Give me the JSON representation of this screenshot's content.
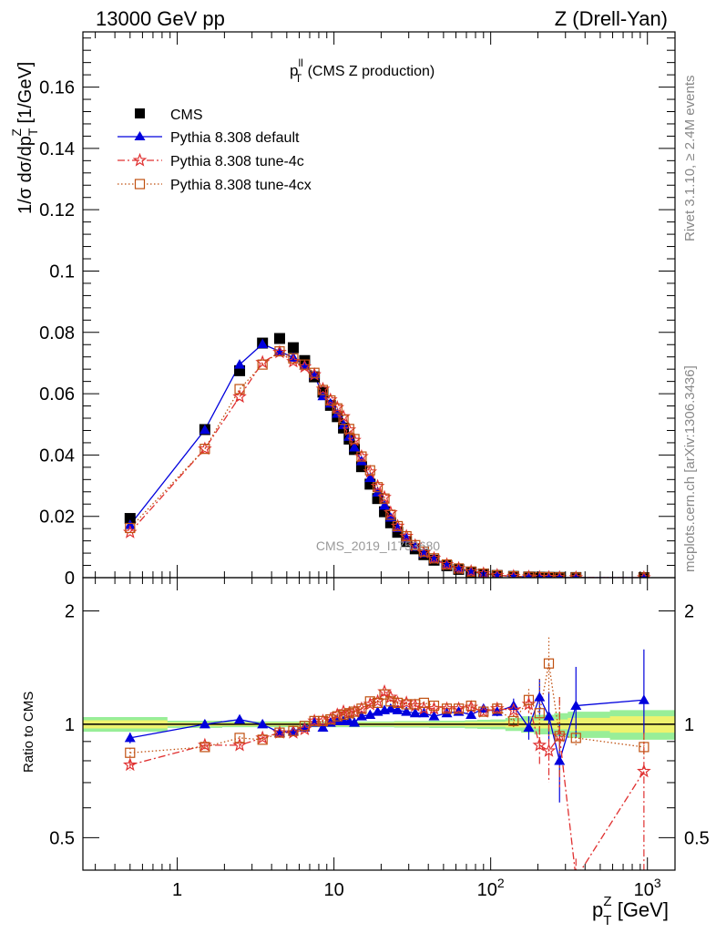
{
  "header": {
    "left": "13000 GeV pp",
    "right": "Z (Drell-Yan)"
  },
  "side_text": {
    "rivet": "Rivet 3.1.10, ≥ 2.4M events",
    "mcplots": "mcplots.cern.ch [arXiv:1306.3436]"
  },
  "chart_data": [
    {
      "type": "scatter",
      "title": "p_T^ll (CMS Z production)",
      "title_main": "p",
      "title_sup": "ll",
      "title_sub": "T",
      "title_rest": " (CMS Z production)",
      "ylabel": "1/σ dσ/dp_T^Z [1/GeV]",
      "ylabel_parts": {
        "a": "1/σ dσ/dp",
        "sub": "T",
        "sup": "Z",
        "b": " [1/GeV]"
      },
      "watermark": "CMS_2019_I1753680",
      "xscale": "log",
      "xlim": [
        0.25,
        1500
      ],
      "ylim": [
        0,
        0.178
      ],
      "yticks": [
        0,
        0.02,
        0.04,
        0.06,
        0.08,
        0.1,
        0.12,
        0.14,
        0.16
      ],
      "ytick_labels": [
        "0",
        "0.02",
        "0.04",
        "0.06",
        "0.08",
        "0.1",
        "0.12",
        "0.14",
        "0.16"
      ],
      "legend_position": "top-left",
      "legend": [
        "CMS",
        "Pythia 8.308 default",
        "Pythia 8.308 tune-4c",
        "Pythia 8.308 tune-4cx"
      ],
      "x": [
        0.5,
        1.5,
        2.5,
        3.5,
        4.5,
        5.5,
        6.5,
        7.5,
        8.5,
        9.5,
        10.5,
        11.5,
        12.5,
        13.5,
        15,
        17,
        19,
        21,
        23,
        25.5,
        29,
        33,
        37.5,
        43.5,
        52.5,
        62.5,
        75,
        90,
        110,
        140,
        175,
        205,
        235,
        275,
        350,
        950
      ],
      "series": [
        {
          "name": "CMS",
          "color": "#000000",
          "marker": "square-filled",
          "values": [
            0.0193,
            0.0483,
            0.0675,
            0.0765,
            0.078,
            0.075,
            0.0708,
            0.0655,
            0.0605,
            0.0562,
            0.0525,
            0.0488,
            0.0452,
            0.0418,
            0.0362,
            0.0305,
            0.0258,
            0.0215,
            0.0179,
            0.0148,
            0.0118,
            0.0094,
            0.0075,
            0.0057,
            0.0039,
            0.0027,
            0.0018,
            0.0012,
            0.0007,
            0.0004,
            0.00022,
            0.00014,
            0.0001,
            7e-05,
            4e-05,
            3e-06
          ]
        },
        {
          "name": "Pythia 8.308 default",
          "color": "#0000dd",
          "marker": "triangle-filled",
          "line": "solid",
          "values": [
            0.0172,
            0.0482,
            0.0695,
            0.0762,
            0.0738,
            0.0718,
            0.0692,
            0.0662,
            0.0592,
            0.0568,
            0.0535,
            0.0498,
            0.046,
            0.0425,
            0.038,
            0.0325,
            0.0278,
            0.0235,
            0.0196,
            0.0162,
            0.0128,
            0.0101,
            0.008,
            0.006,
            0.0042,
            0.0029,
            0.0019,
            0.0013,
            0.00075,
            0.00045,
            0.00022,
            0.00017,
            0.00012,
            6e-05,
            4.5e-05,
            3.5e-06
          ]
        },
        {
          "name": "Pythia 8.308 tune-4c",
          "color": "#e03030",
          "marker": "star-open",
          "line": "dash-dot",
          "values": [
            0.0148,
            0.042,
            0.059,
            0.0702,
            0.0735,
            0.0705,
            0.0688,
            0.0662,
            0.0615,
            0.058,
            0.0555,
            0.0525,
            0.0482,
            0.0448,
            0.0395,
            0.0345,
            0.0298,
            0.0262,
            0.0212,
            0.0168,
            0.0135,
            0.0105,
            0.0082,
            0.0063,
            0.0043,
            0.003,
            0.002,
            0.0013,
            0.00078,
            0.00045,
            0.00025,
            0.00012,
            9e-05,
            6.5e-05,
            1.5e-05,
            2.2e-06
          ]
        },
        {
          "name": "Pythia 8.308 tune-4cx",
          "color": "#c05010",
          "marker": "square-open",
          "line": "dotted",
          "values": [
            0.0162,
            0.042,
            0.0615,
            0.0695,
            0.0738,
            0.0715,
            0.0695,
            0.0668,
            0.0612,
            0.0578,
            0.0552,
            0.0515,
            0.0485,
            0.0452,
            0.0395,
            0.035,
            0.0295,
            0.0258,
            0.0205,
            0.0168,
            0.0135,
            0.0106,
            0.0085,
            0.0063,
            0.0043,
            0.003,
            0.002,
            0.0013,
            0.00078,
            0.00042,
            0.00026,
            0.00015,
            0.000145,
            6.5e-05,
            4e-05,
            2.6e-06
          ]
        }
      ]
    },
    {
      "type": "scatter",
      "ylabel": "Ratio to CMS",
      "xlabel": "p_T^Z [GeV]",
      "xlabel_parts": {
        "a": "p",
        "sub": "T",
        "sup": "Z",
        "b": " [GeV]"
      },
      "xscale": "log",
      "yscale": "log",
      "xlim": [
        0.25,
        1500
      ],
      "ylim": [
        0.41,
        2.45
      ],
      "yticks": [
        0.5,
        1,
        2
      ],
      "ytick_labels": [
        "0.5",
        "1",
        "2"
      ],
      "xticks": [
        1,
        10,
        100,
        1000
      ],
      "xtick_labels": [
        "1",
        "10",
        "10^2",
        "10^3"
      ],
      "reference_line": 1,
      "band_inner_color": "#eef36e",
      "band_outer_color": "#98ee98",
      "x": [
        0.5,
        1.5,
        2.5,
        3.5,
        4.5,
        5.5,
        6.5,
        7.5,
        8.5,
        9.5,
        10.5,
        11.5,
        12.5,
        13.5,
        15,
        17,
        19,
        21,
        23,
        25.5,
        29,
        33,
        37.5,
        43.5,
        52.5,
        62.5,
        75,
        90,
        110,
        140,
        175,
        205,
        235,
        275,
        350,
        950
      ],
      "band_inner_halfwidth": [
        0.025,
        0.012,
        0.01,
        0.01,
        0.01,
        0.01,
        0.01,
        0.01,
        0.01,
        0.01,
        0.01,
        0.01,
        0.01,
        0.01,
        0.01,
        0.01,
        0.01,
        0.01,
        0.01,
        0.012,
        0.012,
        0.012,
        0.012,
        0.012,
        0.012,
        0.012,
        0.015,
        0.015,
        0.015,
        0.02,
        0.02,
        0.025,
        0.025,
        0.03,
        0.04,
        0.05
      ],
      "band_outer_halfwidth": [
        0.045,
        0.022,
        0.018,
        0.018,
        0.018,
        0.018,
        0.018,
        0.018,
        0.018,
        0.018,
        0.018,
        0.018,
        0.018,
        0.018,
        0.018,
        0.018,
        0.018,
        0.018,
        0.018,
        0.02,
        0.02,
        0.02,
        0.02,
        0.022,
        0.022,
        0.022,
        0.025,
        0.028,
        0.03,
        0.04,
        0.05,
        0.06,
        0.06,
        0.07,
        0.08,
        0.09
      ],
      "series": [
        {
          "name": "Pythia 8.308 default",
          "color": "#0000dd",
          "values": [
            0.92,
            1.0,
            1.03,
            1.0,
            0.95,
            0.96,
            0.98,
            1.01,
            0.98,
            1.01,
            1.02,
            1.02,
            1.02,
            1.01,
            1.05,
            1.06,
            1.08,
            1.09,
            1.1,
            1.09,
            1.08,
            1.07,
            1.07,
            1.05,
            1.07,
            1.08,
            1.06,
            1.1,
            1.08,
            1.12,
            0.98,
            1.18,
            1.05,
            0.8,
            1.12,
            1.16
          ],
          "err_lo": [
            0.03,
            0.015,
            0.012,
            0.012,
            0.012,
            0.012,
            0.012,
            0.012,
            0.012,
            0.012,
            0.012,
            0.012,
            0.012,
            0.012,
            0.012,
            0.012,
            0.012,
            0.012,
            0.012,
            0.012,
            0.012,
            0.012,
            0.012,
            0.015,
            0.015,
            0.015,
            0.02,
            0.025,
            0.03,
            0.05,
            0.07,
            0.12,
            0.15,
            0.18,
            0.2,
            0.22
          ],
          "err_hi": [
            0.03,
            0.015,
            0.012,
            0.012,
            0.012,
            0.012,
            0.012,
            0.012,
            0.012,
            0.012,
            0.012,
            0.012,
            0.012,
            0.012,
            0.012,
            0.012,
            0.012,
            0.012,
            0.012,
            0.012,
            0.012,
            0.012,
            0.012,
            0.015,
            0.015,
            0.015,
            0.02,
            0.025,
            0.03,
            0.05,
            0.07,
            0.14,
            0.17,
            0.2,
            0.3,
            0.42
          ]
        },
        {
          "name": "Pythia 8.308 tune-4c",
          "color": "#e03030",
          "values": [
            0.78,
            0.88,
            0.88,
            0.92,
            0.95,
            0.95,
            0.97,
            1.02,
            1.02,
            1.03,
            1.06,
            1.08,
            1.07,
            1.08,
            1.1,
            1.13,
            1.15,
            1.22,
            1.18,
            1.14,
            1.14,
            1.12,
            1.1,
            1.1,
            1.1,
            1.1,
            1.11,
            1.08,
            1.1,
            1.09,
            1.13,
            0.88,
            0.85,
            0.93,
            0.39,
            0.75
          ],
          "err_lo": [
            0.025,
            0.012,
            0.01,
            0.01,
            0.01,
            0.01,
            0.01,
            0.01,
            0.01,
            0.01,
            0.01,
            0.01,
            0.01,
            0.01,
            0.01,
            0.01,
            0.01,
            0.01,
            0.01,
            0.01,
            0.01,
            0.01,
            0.01,
            0.012,
            0.012,
            0.012,
            0.015,
            0.02,
            0.025,
            0.04,
            0.06,
            0.1,
            0.15,
            0.25,
            0.05,
            0.35
          ],
          "err_hi": [
            0.025,
            0.012,
            0.01,
            0.01,
            0.01,
            0.01,
            0.01,
            0.01,
            0.01,
            0.01,
            0.01,
            0.01,
            0.01,
            0.01,
            0.01,
            0.01,
            0.01,
            0.01,
            0.01,
            0.01,
            0.01,
            0.01,
            0.01,
            0.012,
            0.012,
            0.012,
            0.015,
            0.02,
            0.025,
            0.04,
            0.06,
            0.1,
            0.15,
            0.25,
            0.05,
            0.2
          ]
        },
        {
          "name": "Pythia 8.308 tune-4cx",
          "color": "#c05010",
          "values": [
            0.84,
            0.87,
            0.92,
            0.91,
            0.95,
            0.96,
            0.99,
            1.02,
            1.02,
            1.03,
            1.05,
            1.06,
            1.07,
            1.08,
            1.1,
            1.15,
            1.14,
            1.2,
            1.15,
            1.14,
            1.13,
            1.13,
            1.14,
            1.12,
            1.1,
            1.1,
            1.12,
            1.08,
            1.1,
            1.02,
            1.16,
            1.07,
            1.45,
            0.93,
            0.92,
            0.87
          ],
          "err_lo": [
            0.025,
            0.012,
            0.01,
            0.01,
            0.01,
            0.01,
            0.01,
            0.01,
            0.01,
            0.01,
            0.01,
            0.01,
            0.01,
            0.01,
            0.01,
            0.01,
            0.01,
            0.01,
            0.01,
            0.01,
            0.01,
            0.01,
            0.01,
            0.012,
            0.012,
            0.012,
            0.015,
            0.02,
            0.025,
            0.04,
            0.08,
            0.2,
            0.25,
            0.2,
            0.05,
            0.05
          ],
          "err_hi": [
            0.025,
            0.012,
            0.01,
            0.01,
            0.01,
            0.01,
            0.01,
            0.01,
            0.01,
            0.01,
            0.01,
            0.01,
            0.01,
            0.01,
            0.01,
            0.01,
            0.01,
            0.01,
            0.01,
            0.01,
            0.01,
            0.01,
            0.01,
            0.012,
            0.012,
            0.012,
            0.015,
            0.02,
            0.025,
            0.04,
            0.08,
            0.25,
            0.25,
            0.25,
            0.05,
            0.05
          ]
        }
      ]
    }
  ]
}
